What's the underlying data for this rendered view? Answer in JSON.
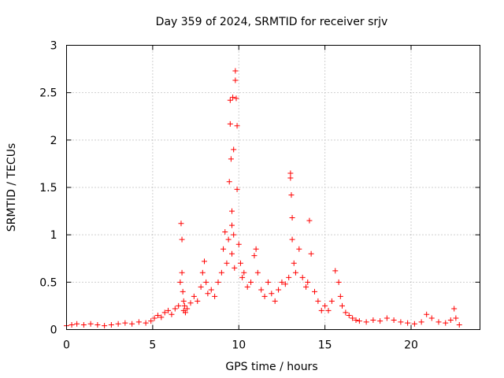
{
  "chart_data": {
    "type": "scatter",
    "title": "Day 359 of 2024, SRMTID for receiver srjv",
    "xlabel": "GPS time / hours",
    "ylabel": "SRMTID / TECUs",
    "xlim": [
      0,
      24
    ],
    "ylim": [
      0,
      3
    ],
    "xticks": [
      "0",
      "5",
      "10",
      "15",
      "20"
    ],
    "yticks": [
      "0",
      "0.5",
      "1",
      "1.5",
      "2",
      "2.5",
      "3"
    ],
    "xtick_values": [
      0,
      5,
      10,
      15,
      20
    ],
    "ytick_values": [
      0,
      0.5,
      1,
      1.5,
      2,
      2.5,
      3
    ],
    "grid": true,
    "marker": "+",
    "color": "#ff0000",
    "series": [
      {
        "name": "srjv",
        "x": [
          0.0,
          0.3,
          0.6,
          1.0,
          1.4,
          1.8,
          2.2,
          2.6,
          3.0,
          3.4,
          3.8,
          4.2,
          4.6,
          4.9,
          5.1,
          5.3,
          5.5,
          5.7,
          5.9,
          6.1,
          6.3,
          6.5,
          6.6,
          6.65,
          6.7,
          6.7,
          6.75,
          6.8,
          6.8,
          6.85,
          6.9,
          7.0,
          7.2,
          7.4,
          7.6,
          7.8,
          7.9,
          8.0,
          8.1,
          8.2,
          8.4,
          8.6,
          8.8,
          9.0,
          9.1,
          9.2,
          9.3,
          9.4,
          9.45,
          9.5,
          9.5,
          9.55,
          9.6,
          9.6,
          9.6,
          9.65,
          9.7,
          9.7,
          9.75,
          9.8,
          9.8,
          9.85,
          9.9,
          9.9,
          10.0,
          10.1,
          10.2,
          10.3,
          10.5,
          10.7,
          10.9,
          11.0,
          11.1,
          11.3,
          11.5,
          11.7,
          11.9,
          12.1,
          12.3,
          12.5,
          12.7,
          12.9,
          13.0,
          13.0,
          13.05,
          13.1,
          13.1,
          13.2,
          13.3,
          13.5,
          13.7,
          13.9,
          14.0,
          14.1,
          14.2,
          14.4,
          14.6,
          14.8,
          15.0,
          15.2,
          15.4,
          15.6,
          15.8,
          15.9,
          16.0,
          16.2,
          16.4,
          16.6,
          16.8,
          17.0,
          17.4,
          17.8,
          18.2,
          18.6,
          19.0,
          19.4,
          19.8,
          20.2,
          20.6,
          20.9,
          21.2,
          21.6,
          22.0,
          22.3,
          22.5,
          22.6,
          22.8
        ],
        "y": [
          0.04,
          0.05,
          0.06,
          0.05,
          0.06,
          0.05,
          0.04,
          0.05,
          0.06,
          0.07,
          0.06,
          0.08,
          0.07,
          0.09,
          0.12,
          0.15,
          0.13,
          0.18,
          0.2,
          0.16,
          0.22,
          0.25,
          0.5,
          1.12,
          0.95,
          0.6,
          0.4,
          0.3,
          0.2,
          0.25,
          0.18,
          0.22,
          0.28,
          0.35,
          0.3,
          0.45,
          0.6,
          0.72,
          0.5,
          0.38,
          0.42,
          0.35,
          0.5,
          0.6,
          0.85,
          1.03,
          0.7,
          0.95,
          1.56,
          2.42,
          2.17,
          1.8,
          1.25,
          1.1,
          0.8,
          2.45,
          1.9,
          1.0,
          0.65,
          2.73,
          2.63,
          2.44,
          2.15,
          1.48,
          0.9,
          0.7,
          0.55,
          0.6,
          0.45,
          0.5,
          0.78,
          0.85,
          0.6,
          0.42,
          0.35,
          0.5,
          0.38,
          0.3,
          0.42,
          0.5,
          0.48,
          0.55,
          1.65,
          1.6,
          1.42,
          1.18,
          0.95,
          0.7,
          0.6,
          0.85,
          0.55,
          0.45,
          0.5,
          1.15,
          0.8,
          0.4,
          0.3,
          0.2,
          0.25,
          0.2,
          0.3,
          0.62,
          0.5,
          0.35,
          0.25,
          0.18,
          0.15,
          0.12,
          0.1,
          0.09,
          0.08,
          0.1,
          0.09,
          0.12,
          0.1,
          0.08,
          0.07,
          0.06,
          0.08,
          0.16,
          0.12,
          0.08,
          0.07,
          0.1,
          0.22,
          0.12,
          0.05
        ]
      }
    ]
  }
}
